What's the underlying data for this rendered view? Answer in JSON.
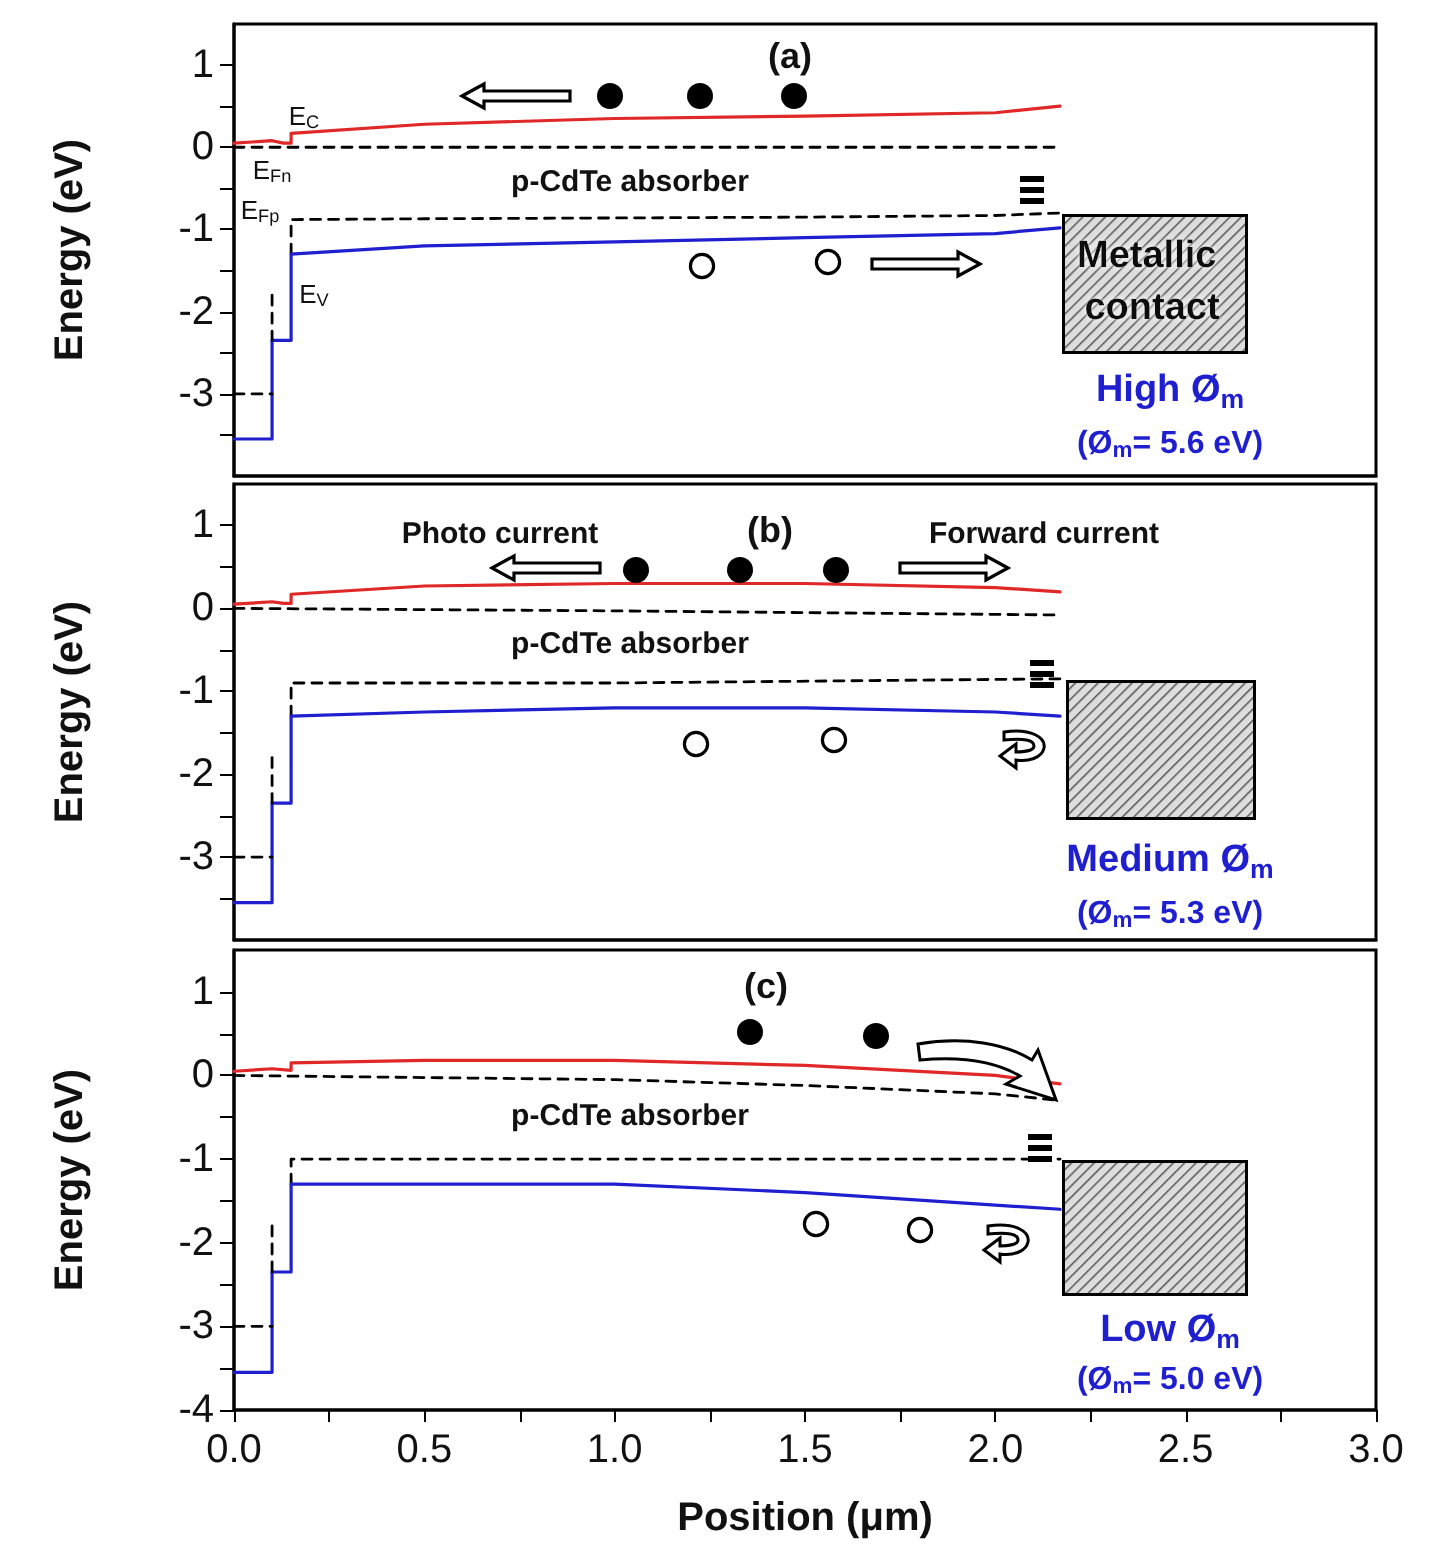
{
  "chart_data": [
    {
      "type": "line",
      "title": "(a)",
      "ylabel": "Energy (eV)",
      "xlim": [
        0,
        3
      ],
      "ylim": [
        -4,
        1.5
      ],
      "yticks": [
        {
          "value": -3.5,
          "label": null
        },
        -3,
        {
          "value": -2.5,
          "label": null
        },
        -2,
        {
          "value": -1.5,
          "label": null
        },
        -1,
        {
          "value": -0.5,
          "label": null
        },
        0,
        {
          "value": 0.5,
          "label": null
        },
        1
      ],
      "tick_labels": "y",
      "marker": "none",
      "annotations": [
        "p-CdTe absorber",
        "Metallic contact",
        "High Ø$_{m}$",
        "(Ø$_{m}$= 5.6 eV)",
        "E$_{C}$",
        "E$_{Fn}$",
        "E$_{Fp}$",
        "E$_{V}$"
      ],
      "series": [
        {
          "color": "#e02828",
          "line_style": "solid",
          "x": [
            0,
            0.1,
            0.13,
            0.15,
            0.15,
            0.5,
            1,
            1.5,
            2,
            2.17
          ],
          "values": [
            0.05,
            0.08,
            0.05,
            0.05,
            0.17,
            0.28,
            0.35,
            0.38,
            0.42,
            0.5
          ]
        },
        {
          "color": "#000000",
          "line_style": "dashed",
          "x": [
            0,
            2.17
          ],
          "values": [
            0,
            0
          ]
        },
        {
          "color": "#000000",
          "line_style": "dashed",
          "x": [
            0.15,
            0.15,
            0.5,
            1,
            1.5,
            2,
            2.17
          ],
          "values": [
            -1.3,
            -0.88,
            -0.87,
            -0.86,
            -0.85,
            -0.83,
            -0.8
          ]
        },
        {
          "color": "#1f1fd0",
          "line_style": "solid",
          "x": [
            0,
            0.1,
            0.1,
            0.15,
            0.15,
            0.5,
            1,
            1.5,
            2,
            2.17
          ],
          "values": [
            -3.55,
            -3.55,
            -2.35,
            -2.35,
            -1.3,
            -1.2,
            -1.15,
            -1.1,
            -1.05,
            -0.98
          ]
        },
        {
          "color": "#000000",
          "line_style": "dashed",
          "x": [
            0,
            0.1
          ],
          "values": [
            -3,
            -3
          ]
        },
        {
          "color": "#000000",
          "line_style": "dashed",
          "x": [
            0.1,
            0.1
          ],
          "values": [
            -1.8,
            -2.35
          ]
        }
      ]
    },
    {
      "type": "line",
      "title": "(b)",
      "ylabel": "Energy (eV)",
      "xlim": [
        0,
        3
      ],
      "ylim": [
        -4,
        1.5
      ],
      "yticks": [
        {
          "value": -3.5,
          "label": null
        },
        -3,
        {
          "value": -2.5,
          "label": null
        },
        -2,
        {
          "value": -1.5,
          "label": null
        },
        -1,
        {
          "value": -0.5,
          "label": null
        },
        0,
        {
          "value": 0.5,
          "label": null
        },
        1
      ],
      "tick_labels": "y",
      "marker": "none",
      "annotations": [
        "Photo current",
        "Forward current",
        "p-CdTe absorber",
        "Medium Ø$_{m}$",
        "(Ø$_{m}$= 5.3 eV)"
      ],
      "series": [
        {
          "color": "#e02828",
          "line_style": "solid",
          "x": [
            0,
            0.1,
            0.13,
            0.15,
            0.15,
            0.5,
            1,
            1.5,
            2,
            2.17
          ],
          "values": [
            0.05,
            0.08,
            0.06,
            0.06,
            0.17,
            0.27,
            0.3,
            0.3,
            0.25,
            0.2
          ]
        },
        {
          "color": "#000000",
          "line_style": "dashed",
          "x": [
            0,
            1,
            2.17
          ],
          "values": [
            0,
            -0.03,
            -0.08
          ]
        },
        {
          "color": "#000000",
          "line_style": "dashed",
          "x": [
            0.15,
            0.15,
            1,
            2.17
          ],
          "values": [
            -1.3,
            -0.9,
            -0.9,
            -0.85
          ]
        },
        {
          "color": "#1f1fd0",
          "line_style": "solid",
          "x": [
            0,
            0.1,
            0.1,
            0.15,
            0.15,
            0.5,
            1,
            1.5,
            2,
            2.17
          ],
          "values": [
            -3.55,
            -3.55,
            -2.35,
            -2.35,
            -1.3,
            -1.25,
            -1.2,
            -1.2,
            -1.25,
            -1.3
          ]
        },
        {
          "color": "#000000",
          "line_style": "dashed",
          "x": [
            0,
            0.1
          ],
          "values": [
            -3,
            -3
          ]
        },
        {
          "color": "#000000",
          "line_style": "dashed",
          "x": [
            0.1,
            0.1
          ],
          "values": [
            -1.8,
            -2.35
          ]
        }
      ]
    },
    {
      "type": "line",
      "title": "(c)",
      "ylabel": "Energy (eV)",
      "xlabel": "Position (μm)",
      "xlim": [
        0,
        3
      ],
      "ylim": [
        -4,
        1.5
      ],
      "xticks": [
        {
          "value": 0,
          "label": "0.0"
        },
        {
          "value": 0.25,
          "label": null
        },
        {
          "value": 0.5,
          "label": "0.5"
        },
        {
          "value": 0.75,
          "label": null
        },
        {
          "value": 1,
          "label": "1.0"
        },
        {
          "value": 1.25,
          "label": null
        },
        {
          "value": 1.5,
          "label": "1.5"
        },
        {
          "value": 1.75,
          "label": null
        },
        {
          "value": 2,
          "label": "2.0"
        },
        {
          "value": 2.25,
          "label": null
        },
        {
          "value": 2.5,
          "label": "2.5"
        },
        {
          "value": 2.75,
          "label": null
        },
        {
          "value": 3,
          "label": "3.0"
        }
      ],
      "yticks": [
        -4,
        {
          "value": -3.5,
          "label": null
        },
        -3,
        {
          "value": -2.5,
          "label": null
        },
        -2,
        {
          "value": -1.5,
          "label": null
        },
        -1,
        {
          "value": -0.5,
          "label": null
        },
        0,
        {
          "value": 0.5,
          "label": null
        },
        1
      ],
      "marker": "none",
      "annotations": [
        "p-CdTe absorber",
        "Low Ø$_{m}$",
        "(Ø$_{m}$= 5.0 eV)"
      ],
      "series": [
        {
          "color": "#e02828",
          "line_style": "solid",
          "x": [
            0,
            0.1,
            0.15,
            0.15,
            0.5,
            1,
            1.5,
            2,
            2.17
          ],
          "values": [
            0.05,
            0.08,
            0.06,
            0.15,
            0.18,
            0.18,
            0.12,
            0,
            -0.1
          ]
        },
        {
          "color": "#000000",
          "line_style": "dashed",
          "x": [
            0,
            1,
            1.5,
            2,
            2.17
          ],
          "values": [
            0,
            -0.05,
            -0.12,
            -0.22,
            -0.3
          ]
        },
        {
          "color": "#000000",
          "line_style": "dashed",
          "x": [
            0.15,
            0.15,
            2.17
          ],
          "values": [
            -1.3,
            -1,
            -1
          ]
        },
        {
          "color": "#1f1fd0",
          "line_style": "solid",
          "x": [
            0,
            0.1,
            0.1,
            0.15,
            0.15,
            0.5,
            1,
            1.5,
            2,
            2.17
          ],
          "values": [
            -3.55,
            -3.55,
            -2.35,
            -2.35,
            -1.3,
            -1.3,
            -1.3,
            -1.4,
            -1.55,
            -1.6
          ]
        },
        {
          "color": "#000000",
          "line_style": "dashed",
          "x": [
            0,
            0.1
          ],
          "values": [
            -3,
            -3
          ]
        },
        {
          "color": "#000000",
          "line_style": "dashed",
          "x": [
            0.1,
            0.1
          ],
          "values": [
            -1.8,
            -2.35
          ]
        }
      ]
    }
  ]
}
